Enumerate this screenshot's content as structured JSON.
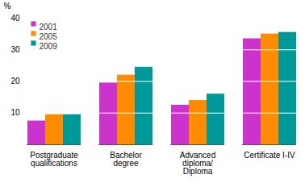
{
  "chart_data": {
    "type": "bar",
    "categories": [
      "Postgraduate\nqualifications",
      "Bachelor\ndegree",
      "Advanced\ndiploma/\nDiploma",
      "Certificate I-IV"
    ],
    "series": [
      {
        "name": "2001",
        "color": "#CC33CC",
        "values": [
          7.5,
          19.5,
          12.5,
          33.5
        ]
      },
      {
        "name": "2005",
        "color": "#FF8C00",
        "values": [
          9.5,
          22.0,
          14.0,
          35.0
        ]
      },
      {
        "name": "2009",
        "color": "#009999",
        "values": [
          9.5,
          24.5,
          16.0,
          35.5
        ]
      }
    ],
    "ylabel": "%",
    "ylim": [
      0,
      40
    ],
    "yticks": [
      10,
      20,
      30,
      40
    ],
    "grid": true,
    "legend": "upper left"
  }
}
